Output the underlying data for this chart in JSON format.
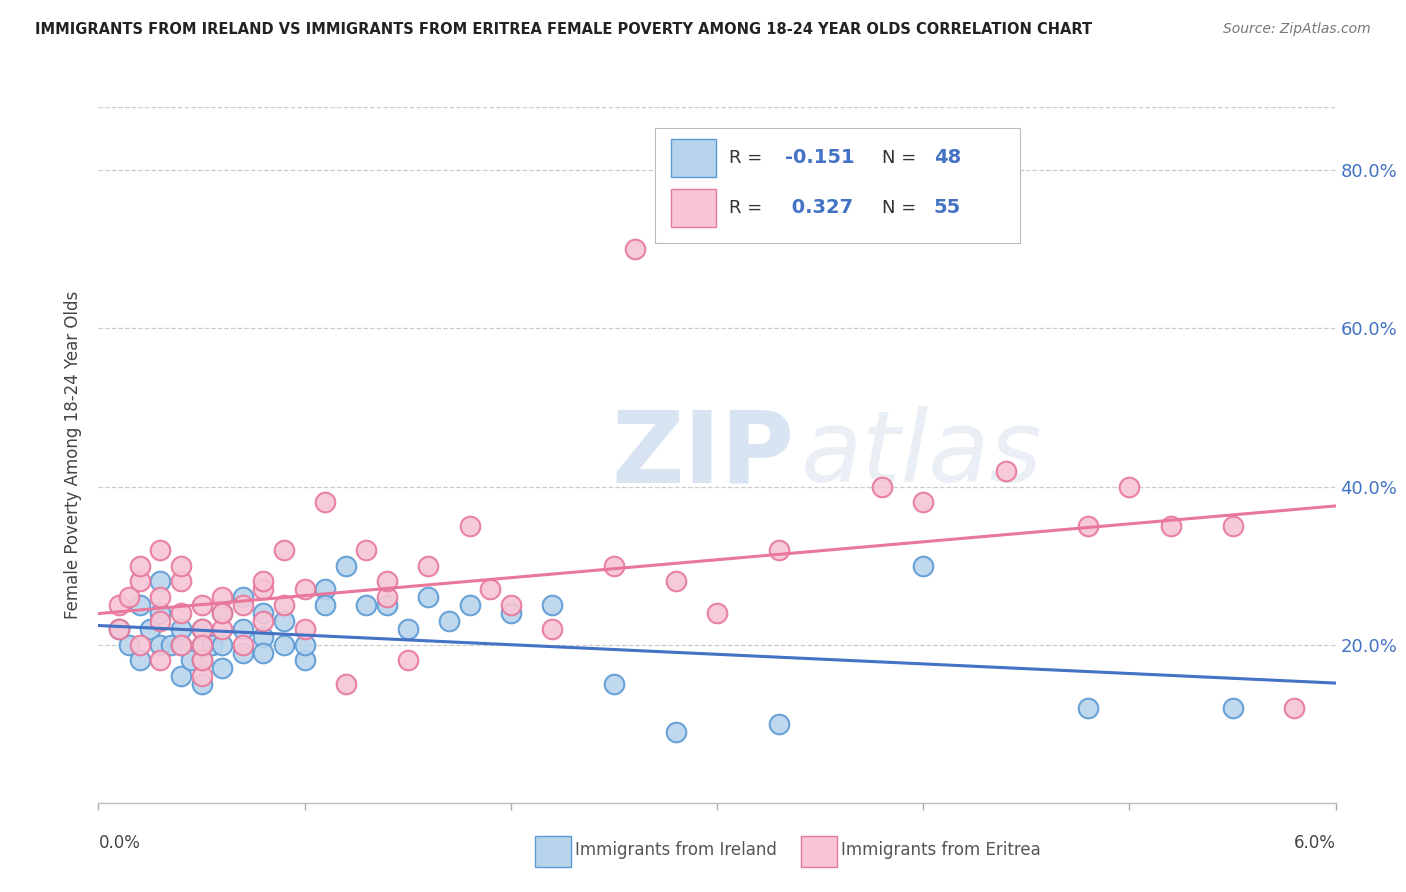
{
  "title": "IMMIGRANTS FROM IRELAND VS IMMIGRANTS FROM ERITREA FEMALE POVERTY AMONG 18-24 YEAR OLDS CORRELATION CHART",
  "source": "Source: ZipAtlas.com",
  "ylabel": "Female Poverty Among 18-24 Year Olds",
  "xlim": [
    0.0,
    0.06
  ],
  "ylim": [
    0.0,
    0.88
  ],
  "yticks": [
    0.2,
    0.4,
    0.6,
    0.8
  ],
  "ytick_labels": [
    "20.0%",
    "40.0%",
    "60.0%",
    "80.0%"
  ],
  "watermark_zip": "ZIP",
  "watermark_atlas": "atlas",
  "ireland_color": "#b8d4ed",
  "ireland_edge_color": "#5b9bd5",
  "eritrea_color": "#f7c5d5",
  "eritrea_edge_color": "#e8779a",
  "ireland_line_color": "#4472c4",
  "eritrea_line_color": "#e8779a",
  "legend_R_ireland": "-0.151",
  "legend_N_ireland": "48",
  "legend_R_eritrea": "0.327",
  "legend_N_eritrea": "55",
  "ireland_x": [
    0.001,
    0.0015,
    0.002,
    0.002,
    0.0025,
    0.003,
    0.003,
    0.003,
    0.0035,
    0.004,
    0.004,
    0.004,
    0.0045,
    0.005,
    0.005,
    0.005,
    0.005,
    0.0055,
    0.006,
    0.006,
    0.006,
    0.007,
    0.007,
    0.007,
    0.008,
    0.008,
    0.008,
    0.009,
    0.009,
    0.01,
    0.01,
    0.011,
    0.011,
    0.012,
    0.013,
    0.014,
    0.015,
    0.016,
    0.017,
    0.018,
    0.02,
    0.022,
    0.025,
    0.028,
    0.033,
    0.04,
    0.048,
    0.055
  ],
  "ireland_y": [
    0.22,
    0.2,
    0.18,
    0.25,
    0.22,
    0.2,
    0.24,
    0.28,
    0.2,
    0.16,
    0.2,
    0.22,
    0.18,
    0.15,
    0.2,
    0.22,
    0.18,
    0.2,
    0.2,
    0.24,
    0.17,
    0.19,
    0.22,
    0.26,
    0.21,
    0.24,
    0.19,
    0.2,
    0.23,
    0.18,
    0.2,
    0.27,
    0.25,
    0.3,
    0.25,
    0.25,
    0.22,
    0.26,
    0.23,
    0.25,
    0.24,
    0.25,
    0.15,
    0.09,
    0.1,
    0.3,
    0.12,
    0.12
  ],
  "eritrea_x": [
    0.001,
    0.001,
    0.0015,
    0.002,
    0.002,
    0.002,
    0.003,
    0.003,
    0.003,
    0.003,
    0.004,
    0.004,
    0.004,
    0.004,
    0.005,
    0.005,
    0.005,
    0.005,
    0.005,
    0.006,
    0.006,
    0.006,
    0.007,
    0.007,
    0.008,
    0.008,
    0.008,
    0.009,
    0.009,
    0.01,
    0.01,
    0.011,
    0.012,
    0.013,
    0.014,
    0.014,
    0.015,
    0.016,
    0.018,
    0.019,
    0.02,
    0.022,
    0.025,
    0.026,
    0.028,
    0.03,
    0.033,
    0.038,
    0.04,
    0.044,
    0.048,
    0.05,
    0.052,
    0.055,
    0.058
  ],
  "eritrea_y": [
    0.22,
    0.25,
    0.26,
    0.2,
    0.28,
    0.3,
    0.18,
    0.23,
    0.26,
    0.32,
    0.2,
    0.24,
    0.28,
    0.3,
    0.16,
    0.22,
    0.25,
    0.18,
    0.2,
    0.22,
    0.26,
    0.24,
    0.2,
    0.25,
    0.27,
    0.23,
    0.28,
    0.25,
    0.32,
    0.22,
    0.27,
    0.38,
    0.15,
    0.32,
    0.26,
    0.28,
    0.18,
    0.3,
    0.35,
    0.27,
    0.25,
    0.22,
    0.3,
    0.7,
    0.28,
    0.24,
    0.32,
    0.4,
    0.38,
    0.42,
    0.35,
    0.4,
    0.35,
    0.35,
    0.12
  ],
  "background_color": "#ffffff",
  "grid_color": "#cccccc"
}
